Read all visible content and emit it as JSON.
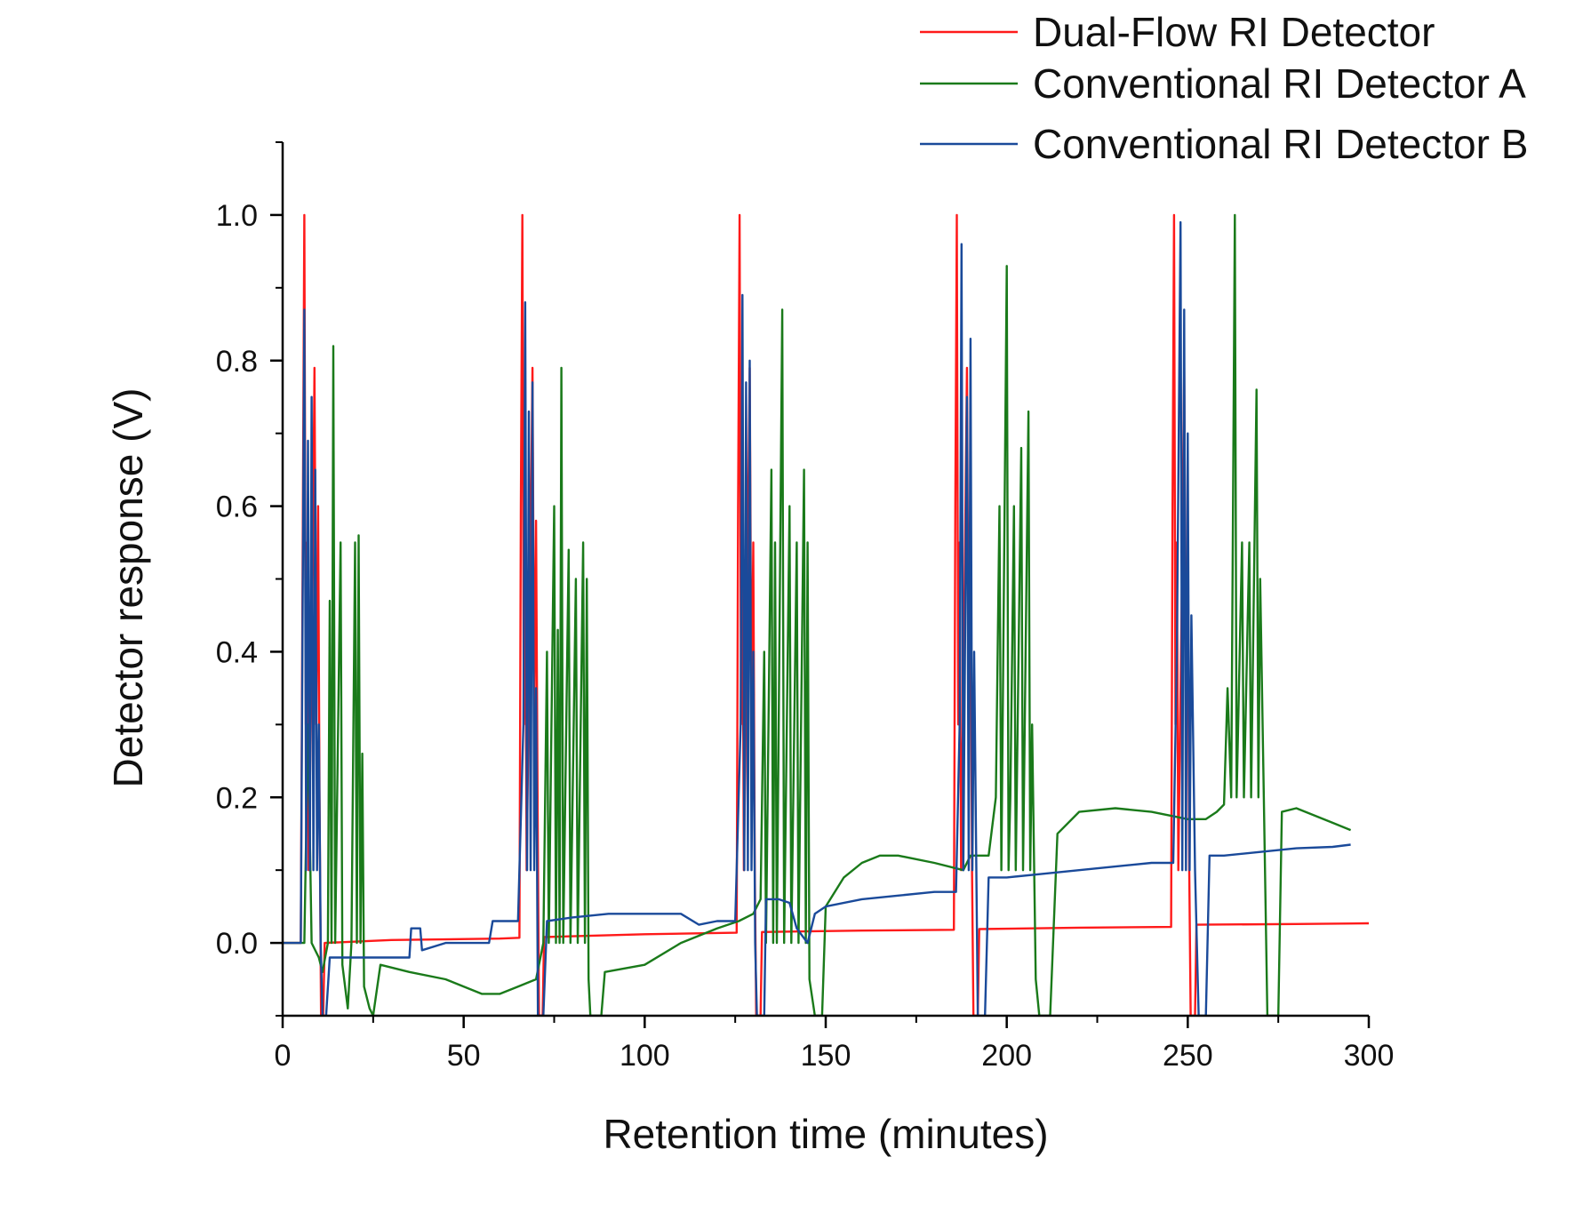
{
  "chart_data": {
    "type": "line",
    "title": "",
    "xlabel": "Retention time (minutes)",
    "ylabel": "Detector response (V)",
    "xlim": [
      0,
      300
    ],
    "ylim": [
      -0.1,
      1.1
    ],
    "xticks": [
      0,
      50,
      100,
      150,
      200,
      250,
      300
    ],
    "xtick_labels": [
      "0",
      "50",
      "100",
      "150",
      "200",
      "250",
      "300"
    ],
    "yticks": [
      0.0,
      0.2,
      0.4,
      0.6,
      0.8,
      1.0
    ],
    "ytick_labels": [
      "0.0",
      "0.2",
      "0.4",
      "0.6",
      "0.8",
      "1.0"
    ],
    "grid": false,
    "legend_position": "top-right",
    "series": [
      {
        "name": "Dual-Flow RI Detector",
        "color": "#ff1a1a",
        "points": [
          [
            0,
            0.0
          ],
          [
            5,
            0.0
          ],
          [
            5.6,
            0.6
          ],
          [
            6,
            1.0
          ],
          [
            6.4,
            0.3
          ],
          [
            6.8,
            0.55
          ],
          [
            7.2,
            0.1
          ],
          [
            8.2,
            0.45
          ],
          [
            8.8,
            0.79
          ],
          [
            9.3,
            0.3
          ],
          [
            9.8,
            0.6
          ],
          [
            10.2,
            0.2
          ],
          [
            10.6,
            -0.1
          ],
          [
            11.2,
            -0.1
          ],
          [
            11.6,
            0.0
          ],
          [
            30,
            0.004
          ],
          [
            60,
            0.006
          ],
          [
            65.4,
            0.007
          ],
          [
            65.8,
            0.6
          ],
          [
            66.2,
            1.0
          ],
          [
            66.6,
            0.3
          ],
          [
            67,
            0.55
          ],
          [
            67.4,
            0.1
          ],
          [
            68.4,
            0.5
          ],
          [
            69,
            0.79
          ],
          [
            69.5,
            0.3
          ],
          [
            70,
            0.58
          ],
          [
            70.4,
            0.2
          ],
          [
            70.8,
            -0.1
          ],
          [
            71.8,
            -0.1
          ],
          [
            72.2,
            0.008
          ],
          [
            100,
            0.012
          ],
          [
            125.4,
            0.014
          ],
          [
            125.8,
            0.6
          ],
          [
            126.2,
            1.0
          ],
          [
            126.6,
            0.3
          ],
          [
            127,
            0.55
          ],
          [
            127.4,
            0.1
          ],
          [
            128.4,
            0.5
          ],
          [
            129,
            0.79
          ],
          [
            129.5,
            0.3
          ],
          [
            130,
            0.55
          ],
          [
            130.4,
            0.1
          ],
          [
            130.8,
            -0.1
          ],
          [
            132,
            -0.1
          ],
          [
            132.4,
            0.015
          ],
          [
            160,
            0.017
          ],
          [
            185.4,
            0.018
          ],
          [
            185.8,
            0.6
          ],
          [
            186.2,
            1.0
          ],
          [
            186.6,
            0.3
          ],
          [
            187,
            0.55
          ],
          [
            187.4,
            0.1
          ],
          [
            188.4,
            0.5
          ],
          [
            189,
            0.79
          ],
          [
            189.5,
            0.3
          ],
          [
            190,
            0.55
          ],
          [
            190.4,
            0.1
          ],
          [
            190.8,
            -0.1
          ],
          [
            192,
            -0.1
          ],
          [
            192.4,
            0.019
          ],
          [
            220,
            0.021
          ],
          [
            245.4,
            0.022
          ],
          [
            245.8,
            0.6
          ],
          [
            246.2,
            1.0
          ],
          [
            246.6,
            0.3
          ],
          [
            247,
            0.55
          ],
          [
            247.4,
            0.1
          ],
          [
            248.4,
            0.5
          ],
          [
            249,
            0.79
          ],
          [
            249.5,
            0.3
          ],
          [
            250,
            0.55
          ],
          [
            250.4,
            0.1
          ],
          [
            250.8,
            -0.1
          ],
          [
            252,
            -0.1
          ],
          [
            252.4,
            0.025
          ],
          [
            280,
            0.026
          ],
          [
            300,
            0.027
          ]
        ]
      },
      {
        "name": "Conventional RI Detector A",
        "color": "#1a7a1a",
        "points": [
          [
            0,
            0.0
          ],
          [
            6,
            0.0
          ],
          [
            7,
            0.3
          ],
          [
            8,
            0.0
          ],
          [
            10,
            -0.02
          ],
          [
            11,
            -0.04
          ],
          [
            12.5,
            0.0
          ],
          [
            13,
            0.47
          ],
          [
            13.5,
            0.0
          ],
          [
            14,
            0.82
          ],
          [
            14.5,
            0.0
          ],
          [
            16,
            0.55
          ],
          [
            16.5,
            -0.03
          ],
          [
            18,
            -0.09
          ],
          [
            19,
            0.0
          ],
          [
            20,
            0.55
          ],
          [
            20.5,
            0.0
          ],
          [
            21,
            0.56
          ],
          [
            21.5,
            0.0
          ],
          [
            22,
            0.26
          ],
          [
            22.5,
            -0.06
          ],
          [
            24,
            -0.09
          ],
          [
            25,
            -0.1
          ],
          [
            27,
            -0.03
          ],
          [
            35,
            -0.04
          ],
          [
            45,
            -0.05
          ],
          [
            55,
            -0.07
          ],
          [
            60,
            -0.07
          ],
          [
            65,
            -0.06
          ],
          [
            70,
            -0.05
          ],
          [
            72,
            0.0
          ],
          [
            73,
            0.4
          ],
          [
            73.5,
            0.0
          ],
          [
            75,
            0.6
          ],
          [
            75.5,
            0.0
          ],
          [
            76,
            0.43
          ],
          [
            76.5,
            0.0
          ],
          [
            77,
            0.79
          ],
          [
            77.5,
            0.0
          ],
          [
            79,
            0.54
          ],
          [
            79.5,
            0.0
          ],
          [
            81,
            0.5
          ],
          [
            81.5,
            0.0
          ],
          [
            83,
            0.55
          ],
          [
            83.5,
            0.0
          ],
          [
            84,
            0.5
          ],
          [
            84.5,
            -0.05
          ],
          [
            85,
            -0.1
          ],
          [
            88,
            -0.1
          ],
          [
            89,
            -0.04
          ],
          [
            100,
            -0.03
          ],
          [
            110,
            0.0
          ],
          [
            120,
            0.02
          ],
          [
            126,
            0.03
          ],
          [
            130,
            0.04
          ],
          [
            132,
            0.06
          ],
          [
            133,
            0.4
          ],
          [
            133.5,
            0.0
          ],
          [
            135,
            0.65
          ],
          [
            135.5,
            0.0
          ],
          [
            136,
            0.55
          ],
          [
            136.5,
            0.0
          ],
          [
            138,
            0.87
          ],
          [
            138.5,
            0.0
          ],
          [
            140,
            0.6
          ],
          [
            140.5,
            0.0
          ],
          [
            142,
            0.55
          ],
          [
            142.5,
            0.0
          ],
          [
            144,
            0.65
          ],
          [
            144.5,
            0.0
          ],
          [
            145,
            0.55
          ],
          [
            145.5,
            -0.05
          ],
          [
            147,
            -0.1
          ],
          [
            149,
            -0.1
          ],
          [
            150,
            0.05
          ],
          [
            155,
            0.09
          ],
          [
            160,
            0.11
          ],
          [
            165,
            0.12
          ],
          [
            170,
            0.12
          ],
          [
            180,
            0.11
          ],
          [
            188,
            0.1
          ],
          [
            190,
            0.12
          ],
          [
            195,
            0.12
          ],
          [
            197,
            0.2
          ],
          [
            198,
            0.6
          ],
          [
            198.5,
            0.1
          ],
          [
            200,
            0.93
          ],
          [
            200.5,
            0.1
          ],
          [
            201,
            0.2
          ],
          [
            202,
            0.6
          ],
          [
            202.5,
            0.1
          ],
          [
            204,
            0.68
          ],
          [
            204.5,
            0.1
          ],
          [
            206,
            0.73
          ],
          [
            206.5,
            0.1
          ],
          [
            207,
            0.3
          ],
          [
            208,
            -0.05
          ],
          [
            209,
            -0.1
          ],
          [
            212,
            -0.1
          ],
          [
            214,
            0.15
          ],
          [
            220,
            0.18
          ],
          [
            230,
            0.185
          ],
          [
            240,
            0.18
          ],
          [
            250,
            0.17
          ],
          [
            255,
            0.17
          ],
          [
            258,
            0.18
          ],
          [
            260,
            0.19
          ],
          [
            261,
            0.35
          ],
          [
            262,
            0.2
          ],
          [
            263,
            1.0
          ],
          [
            263.5,
            0.2
          ],
          [
            265,
            0.55
          ],
          [
            265.5,
            0.2
          ],
          [
            267,
            0.55
          ],
          [
            267.5,
            0.2
          ],
          [
            269,
            0.76
          ],
          [
            269.5,
            0.2
          ],
          [
            270,
            0.5
          ],
          [
            271,
            0.2
          ],
          [
            272,
            -0.1
          ],
          [
            275,
            -0.1
          ],
          [
            276,
            0.18
          ],
          [
            280,
            0.185
          ],
          [
            290,
            0.165
          ],
          [
            295,
            0.155
          ]
        ]
      },
      {
        "name": "Conventional RI Detector B",
        "color": "#1a4a9a",
        "points": [
          [
            0,
            0.0
          ],
          [
            5,
            0.0
          ],
          [
            6,
            0.87
          ],
          [
            6.5,
            0.1
          ],
          [
            7,
            0.69
          ],
          [
            7.5,
            0.1
          ],
          [
            8,
            0.75
          ],
          [
            8.5,
            0.1
          ],
          [
            9,
            0.65
          ],
          [
            9.5,
            0.1
          ],
          [
            10,
            0.3
          ],
          [
            10.5,
            0.0
          ],
          [
            11,
            -0.1
          ],
          [
            12,
            -0.1
          ],
          [
            13,
            -0.02
          ],
          [
            20,
            -0.02
          ],
          [
            30,
            -0.02
          ],
          [
            35,
            -0.02
          ],
          [
            35.5,
            0.02
          ],
          [
            38,
            0.02
          ],
          [
            38.5,
            -0.01
          ],
          [
            45,
            0.0
          ],
          [
            57,
            0.0
          ],
          [
            58,
            0.03
          ],
          [
            65,
            0.03
          ],
          [
            66.5,
            0.3
          ],
          [
            67,
            0.88
          ],
          [
            67.5,
            0.1
          ],
          [
            68,
            0.73
          ],
          [
            68.5,
            0.1
          ],
          [
            69,
            0.77
          ],
          [
            69.5,
            0.1
          ],
          [
            70,
            0.35
          ],
          [
            70.5,
            -0.1
          ],
          [
            72,
            -0.1
          ],
          [
            73,
            0.03
          ],
          [
            80,
            0.035
          ],
          [
            90,
            0.04
          ],
          [
            100,
            0.04
          ],
          [
            110,
            0.04
          ],
          [
            115,
            0.025
          ],
          [
            120,
            0.03
          ],
          [
            125,
            0.03
          ],
          [
            126.5,
            0.3
          ],
          [
            127,
            0.89
          ],
          [
            127.5,
            0.1
          ],
          [
            128,
            0.77
          ],
          [
            128.5,
            0.1
          ],
          [
            129,
            0.8
          ],
          [
            129.5,
            0.1
          ],
          [
            130,
            0.4
          ],
          [
            130.5,
            0.0
          ],
          [
            131,
            -0.1
          ],
          [
            133,
            -0.1
          ],
          [
            133.5,
            0.06
          ],
          [
            137,
            0.06
          ],
          [
            140,
            0.055
          ],
          [
            142,
            0.02
          ],
          [
            145,
            0.0
          ],
          [
            147,
            0.04
          ],
          [
            150,
            0.05
          ],
          [
            160,
            0.06
          ],
          [
            170,
            0.065
          ],
          [
            180,
            0.07
          ],
          [
            186,
            0.07
          ],
          [
            187,
            0.3
          ],
          [
            187.5,
            0.96
          ],
          [
            188,
            0.1
          ],
          [
            189,
            0.75
          ],
          [
            189.5,
            0.1
          ],
          [
            190,
            0.83
          ],
          [
            190.5,
            0.1
          ],
          [
            191,
            0.4
          ],
          [
            192,
            -0.1
          ],
          [
            194,
            -0.1
          ],
          [
            195,
            0.09
          ],
          [
            200,
            0.09
          ],
          [
            210,
            0.095
          ],
          [
            220,
            0.1
          ],
          [
            230,
            0.105
          ],
          [
            240,
            0.11
          ],
          [
            246,
            0.11
          ],
          [
            247,
            0.4
          ],
          [
            248,
            0.99
          ],
          [
            248.5,
            0.1
          ],
          [
            249,
            0.87
          ],
          [
            249.5,
            0.1
          ],
          [
            250,
            0.7
          ],
          [
            250.5,
            0.1
          ],
          [
            251,
            0.45
          ],
          [
            252,
            0.1
          ],
          [
            253,
            -0.1
          ],
          [
            255,
            -0.1
          ],
          [
            256,
            0.12
          ],
          [
            260,
            0.12
          ],
          [
            270,
            0.125
          ],
          [
            280,
            0.13
          ],
          [
            290,
            0.132
          ],
          [
            295,
            0.135
          ]
        ]
      }
    ]
  }
}
